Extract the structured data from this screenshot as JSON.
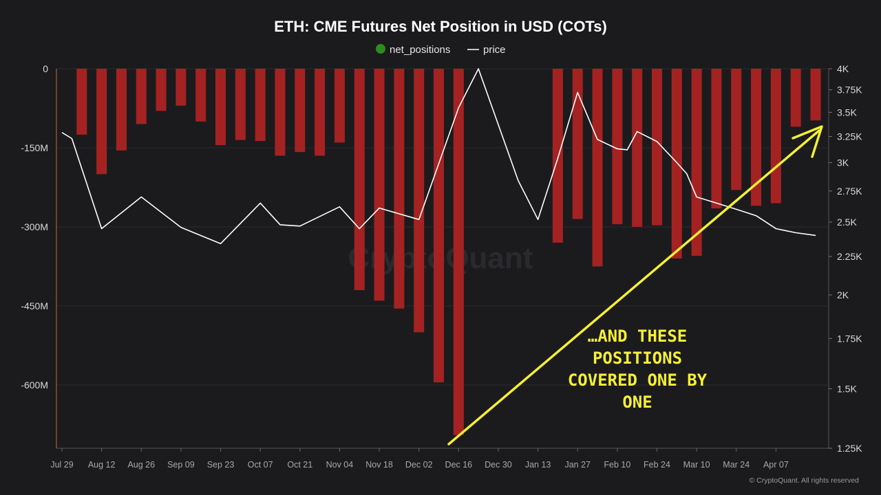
{
  "chart_data": {
    "type": "bar",
    "title": "ETH: CME Futures Net Position in USD (COTs)",
    "legend": {
      "placement": "top-center",
      "items": [
        {
          "label": "net_positions",
          "color": "#2e8b1e",
          "marker": "dot"
        },
        {
          "label": "price",
          "color": "#ffffff",
          "marker": "line"
        }
      ]
    },
    "x_tick_labels": [
      "Jul 29",
      "Aug 12",
      "Aug 26",
      "Sep 09",
      "Sep 23",
      "Oct 07",
      "Oct 21",
      "Nov 04",
      "Nov 18",
      "Dec 02",
      "Dec 16",
      "Dec 30",
      "Jan 13",
      "Jan 27",
      "Feb 10",
      "Feb 24",
      "Mar 10",
      "Mar 24",
      "Apr 07"
    ],
    "left_axis": {
      "ylim": [
        -720,
        0
      ],
      "tick_values": [
        0,
        -150,
        -300,
        -450,
        -600
      ],
      "tick_labels": [
        "0",
        "-150M",
        "-300M",
        "-450M",
        "-600M"
      ]
    },
    "right_axis": {
      "scale": "log",
      "ylim": [
        1250,
        4000
      ],
      "tick_values": [
        4000,
        3750,
        3500,
        3250,
        3000,
        2750,
        2500,
        2250,
        2000,
        1750,
        1500,
        1250
      ],
      "tick_labels": [
        "4K",
        "3.75K",
        "3.5K",
        "3.25K",
        "3K",
        "2.75K",
        "2.5K",
        "2.25K",
        "2K",
        "1.75K",
        "1.5K",
        "1.25K"
      ]
    },
    "series": [
      {
        "name": "net_positions",
        "type": "bar",
        "axis": "left",
        "color": "#a52222",
        "x_index": [
          1,
          2,
          3,
          4,
          5,
          6,
          7,
          8,
          9,
          10,
          11,
          12,
          13,
          14,
          15,
          16,
          17,
          18,
          19,
          20,
          21,
          22,
          23,
          24,
          25,
          26,
          27,
          28,
          29,
          30,
          31,
          32,
          33,
          34,
          35,
          36,
          37,
          38
        ],
        "values": [
          -125,
          -200,
          -155,
          -105,
          -80,
          -70,
          -100,
          -145,
          -135,
          -137,
          -165,
          -158,
          -165,
          -140,
          -420,
          -440,
          -455,
          -500,
          -595,
          -695,
          null,
          null,
          null,
          null,
          -330,
          -285,
          -375,
          -295,
          -300,
          -297,
          -360,
          -355,
          -265,
          -230,
          -260,
          -255,
          -110,
          -98
        ]
      },
      {
        "name": "price",
        "type": "line",
        "axis": "right",
        "color": "#ffffff",
        "x_index": [
          0,
          0.5,
          2,
          4,
          6,
          8,
          10,
          11,
          12,
          14,
          15,
          16,
          18,
          20,
          21,
          23,
          24,
          25,
          26,
          27,
          28,
          28.5,
          29,
          30,
          31,
          31.5,
          32,
          33,
          34,
          35,
          36,
          37,
          38
        ],
        "values": [
          3290,
          3230,
          2450,
          2700,
          2460,
          2340,
          2650,
          2480,
          2470,
          2620,
          2450,
          2610,
          2520,
          3550,
          4000,
          2840,
          2520,
          3040,
          3720,
          3220,
          3130,
          3120,
          3300,
          3200,
          3000,
          2900,
          2700,
          2650,
          2600,
          2550,
          2450,
          2420,
          2400
        ]
      }
    ],
    "watermark": "CryptoQuant",
    "credit": "© CryptoQuant. All rights reserved"
  },
  "annotation": {
    "lines": [
      "…AND THESE",
      "POSITIONS",
      "COVERED ONE BY",
      "ONE"
    ]
  }
}
